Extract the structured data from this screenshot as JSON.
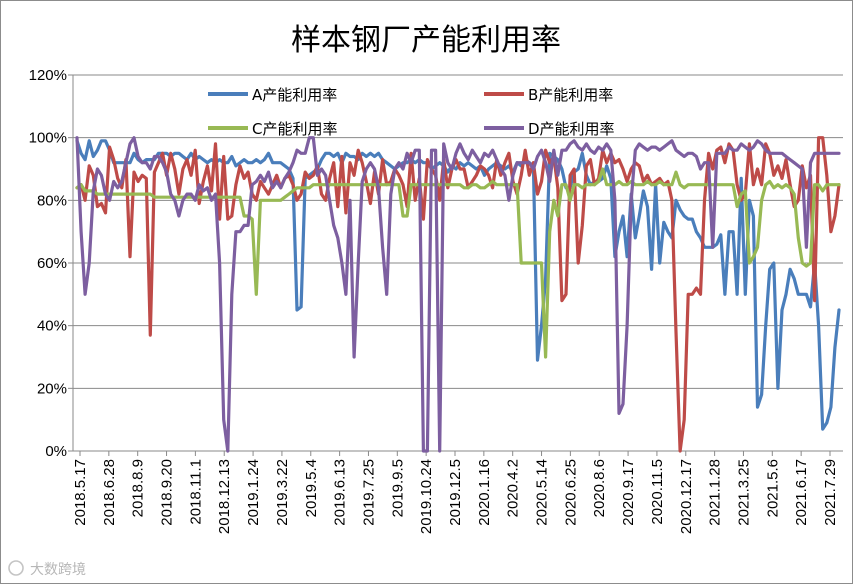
{
  "chart_data": {
    "type": "line",
    "title": "样本钢厂产能利用率",
    "xlabel": "",
    "ylabel": "",
    "ylim": [
      0,
      1.2
    ],
    "y_ticks": [
      "0%",
      "20%",
      "40%",
      "60%",
      "80%",
      "100%",
      "120%"
    ],
    "x_tick_labels": [
      "2018.5.17",
      "2018.6.28",
      "2018.8.9",
      "2018.9.20",
      "2018.11.1",
      "2018.12.13",
      "2019.1.24",
      "2019.3.22",
      "2019.5.4",
      "2019.6.13",
      "2019.7.25",
      "2019.9.5",
      "2019.10.24",
      "2019.12.5",
      "2020.1.16",
      "2020.4.2",
      "2020.5.14",
      "2020.6.25",
      "2020.8.6",
      "2020.9.17",
      "2020.11.5",
      "2020.12.17",
      "2021.1.28",
      "2021.3.25",
      "2021.5.6",
      "2021.6.17",
      "2021.7.29"
    ],
    "grid": "horizontal",
    "legend_position": "top",
    "series": [
      {
        "name": "A产能利用率",
        "color": "#4a7ebb",
        "values": [
          0.99,
          0.95,
          0.93,
          0.99,
          0.94,
          0.96,
          0.99,
          0.99,
          0.96,
          0.92,
          0.92,
          0.92,
          0.92,
          0.92,
          0.95,
          0.93,
          0.92,
          0.93,
          0.93,
          0.93,
          0.95,
          0.95,
          0.95,
          0.94,
          0.95,
          0.95,
          0.94,
          0.93,
          0.95,
          0.93,
          0.94,
          0.93,
          0.92,
          0.93,
          0.92,
          0.93,
          0.92,
          0.92,
          0.94,
          0.91,
          0.92,
          0.93,
          0.92,
          0.92,
          0.93,
          0.92,
          0.93,
          0.95,
          0.92,
          0.92,
          0.92,
          0.91,
          0.9,
          0.87,
          0.45,
          0.46,
          0.87,
          0.88,
          0.89,
          0.9,
          0.93,
          0.95,
          0.95,
          0.94,
          0.95,
          0.92,
          0.95,
          0.94,
          0.94,
          0.93,
          0.95,
          0.94,
          0.95,
          0.94,
          0.95,
          0.93,
          0.92,
          0.91,
          0.9,
          0.91,
          0.92,
          0.92,
          0.93,
          0.92,
          0.93,
          0.92,
          0.92,
          0.9,
          0.91,
          0.92,
          0.91,
          0.89,
          0.91,
          0.9,
          0.92,
          0.91,
          0.92,
          0.91,
          0.9,
          0.91,
          0.88,
          0.9,
          0.91,
          0.92,
          0.91,
          0.9,
          0.91,
          0.89,
          0.92,
          0.91,
          0.93,
          0.92,
          0.91,
          0.29,
          0.4,
          0.55,
          0.95,
          0.94,
          0.93,
          0.9,
          0.84,
          0.84,
          0.89,
          0.9,
          0.95,
          0.88,
          0.85,
          0.86,
          0.86,
          0.87,
          0.91,
          0.87,
          0.62,
          0.7,
          0.75,
          0.62,
          0.82,
          0.68,
          0.75,
          0.83,
          0.78,
          0.58,
          0.85,
          0.6,
          0.73,
          0.7,
          0.68,
          0.8,
          0.77,
          0.75,
          0.74,
          0.74,
          0.7,
          0.68,
          0.65,
          0.65,
          0.65,
          0.66,
          0.69,
          0.5,
          0.7,
          0.7,
          0.5,
          0.87,
          0.5,
          0.8,
          0.75,
          0.14,
          0.18,
          0.4,
          0.58,
          0.6,
          0.2,
          0.45,
          0.5,
          0.58,
          0.55,
          0.5,
          0.5,
          0.5,
          0.46,
          0.6,
          0.4,
          0.07,
          0.09,
          0.14,
          0.33,
          0.45
        ]
      },
      {
        "name": "B产能利用率",
        "color": "#be4b48",
        "values": [
          0.84,
          0.85,
          0.8,
          0.91,
          0.88,
          0.78,
          0.79,
          0.76,
          0.97,
          0.93,
          0.87,
          0.84,
          0.93,
          0.62,
          0.89,
          0.86,
          0.88,
          0.87,
          0.37,
          0.89,
          0.92,
          0.95,
          0.88,
          0.95,
          0.9,
          0.82,
          0.9,
          0.93,
          0.88,
          0.96,
          0.79,
          0.86,
          0.91,
          0.83,
          0.98,
          0.74,
          0.94,
          0.74,
          0.75,
          0.85,
          0.91,
          0.87,
          0.89,
          0.82,
          0.8,
          0.86,
          0.84,
          0.82,
          0.85,
          0.88,
          0.84,
          0.87,
          0.88,
          0.85,
          0.8,
          0.82,
          0.89,
          0.87,
          0.88,
          0.91,
          0.82,
          0.8,
          0.87,
          0.92,
          0.78,
          0.94,
          0.76,
          0.92,
          0.88,
          0.96,
          0.92,
          0.86,
          0.79,
          0.89,
          0.82,
          0.93,
          0.85,
          0.86,
          0.9,
          0.88,
          0.85,
          0.78,
          0.95,
          0.8,
          0.87,
          0.74,
          0.93,
          0.9,
          0.88,
          0.8,
          0.93,
          0.84,
          0.9,
          0.93,
          0.9,
          0.9,
          0.84,
          0.86,
          0.88,
          0.91,
          0.9,
          0.88,
          0.84,
          0.93,
          0.88,
          0.92,
          0.95,
          0.86,
          0.82,
          0.88,
          0.96,
          0.88,
          0.92,
          0.82,
          0.86,
          0.96,
          0.92,
          0.94,
          0.84,
          0.48,
          0.5,
          0.88,
          0.9,
          0.6,
          0.72,
          0.91,
          0.93,
          0.85,
          0.87,
          0.96,
          0.92,
          0.95,
          0.92,
          0.93,
          0.9,
          0.86,
          0.9,
          0.92,
          0.91,
          0.86,
          0.88,
          0.85,
          0.86,
          0.87,
          0.85,
          0.86,
          0.8,
          0.38,
          0.0,
          0.1,
          0.5,
          0.5,
          0.52,
          0.5,
          0.8,
          0.95,
          0.9,
          0.96,
          0.97,
          0.92,
          0.98,
          0.96,
          0.85,
          0.8,
          0.82,
          0.98,
          0.85,
          0.9,
          0.85,
          0.98,
          0.95,
          0.88,
          0.91,
          0.87,
          0.93,
          0.85,
          0.78,
          0.8,
          0.91,
          0.84,
          0.88,
          0.48,
          1.0,
          1.0,
          0.88,
          0.7,
          0.75,
          0.85
        ]
      },
      {
        "name": "C产能利用率",
        "color": "#98b954",
        "values": [
          0.84,
          0.85,
          0.83,
          0.83,
          0.83,
          0.82,
          0.82,
          0.82,
          0.82,
          0.82,
          0.82,
          0.82,
          0.82,
          0.82,
          0.82,
          0.82,
          0.82,
          0.82,
          0.82,
          0.81,
          0.81,
          0.81,
          0.81,
          0.81,
          0.81,
          0.81,
          0.81,
          0.81,
          0.81,
          0.81,
          0.81,
          0.81,
          0.81,
          0.81,
          0.81,
          0.81,
          0.81,
          0.81,
          0.81,
          0.81,
          0.81,
          0.75,
          0.75,
          0.74,
          0.5,
          0.8,
          0.8,
          0.8,
          0.8,
          0.8,
          0.8,
          0.81,
          0.82,
          0.83,
          0.84,
          0.84,
          0.84,
          0.84,
          0.85,
          0.85,
          0.85,
          0.85,
          0.85,
          0.85,
          0.85,
          0.85,
          0.85,
          0.85,
          0.85,
          0.85,
          0.85,
          0.85,
          0.85,
          0.85,
          0.85,
          0.85,
          0.85,
          0.85,
          0.85,
          0.85,
          0.75,
          0.75,
          0.85,
          0.85,
          0.85,
          0.85,
          0.85,
          0.85,
          0.85,
          0.85,
          0.85,
          0.85,
          0.85,
          0.85,
          0.85,
          0.84,
          0.84,
          0.85,
          0.85,
          0.84,
          0.84,
          0.85,
          0.86,
          0.85,
          0.85,
          0.85,
          0.85,
          0.85,
          0.85,
          0.6,
          0.6,
          0.6,
          0.6,
          0.6,
          0.6,
          0.3,
          0.7,
          0.8,
          0.75,
          0.85,
          0.85,
          0.8,
          0.85,
          0.85,
          0.84,
          0.85,
          0.85,
          0.85,
          0.86,
          0.9,
          0.85,
          0.85,
          0.85,
          0.86,
          0.85,
          0.85,
          0.86,
          0.85,
          0.85,
          0.85,
          0.86,
          0.85,
          0.85,
          0.86,
          0.85,
          0.85,
          0.85,
          0.89,
          0.85,
          0.84,
          0.85,
          0.85,
          0.85,
          0.85,
          0.85,
          0.85,
          0.85,
          0.85,
          0.85,
          0.85,
          0.85,
          0.85,
          0.78,
          0.82,
          0.83,
          0.6,
          0.62,
          0.65,
          0.8,
          0.85,
          0.86,
          0.84,
          0.85,
          0.84,
          0.85,
          0.84,
          0.82,
          0.68,
          0.6,
          0.59,
          0.6,
          0.85,
          0.85,
          0.83,
          0.85,
          0.85,
          0.85,
          0.85
        ]
      },
      {
        "name": "D产能利用率",
        "color": "#7d5fa0",
        "values": [
          1.0,
          0.7,
          0.5,
          0.6,
          0.83,
          0.9,
          0.88,
          0.82,
          0.8,
          0.86,
          0.84,
          0.86,
          0.92,
          0.98,
          1.0,
          0.94,
          0.92,
          0.92,
          0.9,
          0.94,
          0.94,
          0.92,
          0.89,
          0.82,
          0.8,
          0.75,
          0.8,
          0.82,
          0.82,
          0.8,
          0.85,
          0.83,
          0.84,
          0.8,
          0.82,
          0.6,
          0.1,
          0.0,
          0.5,
          0.7,
          0.7,
          0.72,
          0.72,
          0.85,
          0.86,
          0.88,
          0.86,
          0.89,
          0.84,
          0.86,
          0.84,
          0.87,
          0.89,
          0.92,
          0.96,
          0.95,
          0.95,
          1.0,
          1.0,
          0.88,
          0.9,
          0.88,
          0.8,
          0.72,
          0.68,
          0.6,
          0.5,
          0.8,
          0.3,
          0.6,
          0.86,
          0.9,
          0.92,
          0.9,
          0.84,
          0.65,
          0.5,
          0.82,
          0.9,
          0.92,
          0.9,
          0.95,
          0.92,
          0.96,
          0.96,
          0.0,
          0.0,
          0.96,
          0.96,
          0.0,
          0.98,
          0.92,
          0.9,
          0.95,
          0.98,
          0.95,
          0.93,
          0.96,
          0.94,
          0.92,
          0.95,
          0.94,
          0.96,
          0.93,
          0.9,
          0.88,
          0.8,
          0.88,
          0.92,
          0.92,
          0.92,
          0.92,
          0.9,
          0.94,
          0.96,
          0.92,
          0.86,
          0.96,
          0.88,
          0.96,
          0.96,
          0.98,
          0.99,
          0.97,
          0.96,
          0.98,
          0.96,
          0.95,
          0.97,
          0.96,
          0.98,
          0.96,
          0.8,
          0.12,
          0.15,
          0.4,
          0.8,
          0.96,
          0.98,
          0.97,
          0.96,
          0.97,
          0.97,
          0.96,
          0.97,
          0.98,
          0.99,
          0.96,
          0.95,
          0.94,
          0.95,
          0.95,
          0.94,
          0.9,
          0.92,
          0.92,
          0.65,
          0.95,
          0.95,
          0.95,
          0.97,
          0.96,
          0.96,
          0.98,
          0.97,
          0.96,
          0.97,
          0.99,
          0.98,
          0.96,
          0.95,
          0.95,
          0.95,
          0.95,
          0.94,
          0.93,
          0.92,
          0.91,
          0.9,
          0.65,
          0.92,
          0.95,
          0.95,
          0.95,
          0.95,
          0.95,
          0.95,
          0.95
        ]
      }
    ]
  },
  "watermark": "大数跨境"
}
